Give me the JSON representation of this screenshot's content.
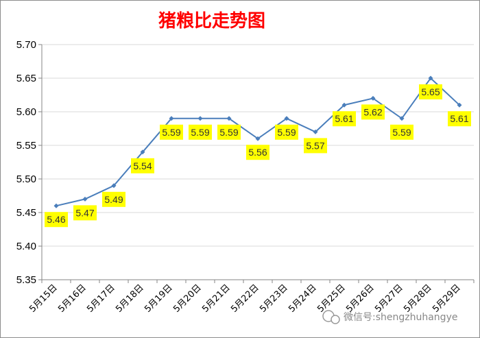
{
  "chart_data": {
    "type": "line",
    "title": "猪粮比走势图",
    "categories": [
      "5月15日",
      "5月16日",
      "5月17日",
      "5月18日",
      "5月19日",
      "5月20日",
      "5月21日",
      "5月22日",
      "5月23日",
      "5月24日",
      "5月25日",
      "5月26日",
      "5月27日",
      "5月28日",
      "5月29日"
    ],
    "values": [
      5.46,
      5.47,
      5.49,
      5.54,
      5.59,
      5.59,
      5.59,
      5.56,
      5.59,
      5.57,
      5.61,
      5.62,
      5.59,
      5.65,
      5.61
    ],
    "data_labels": [
      "5.46",
      "5.47",
      "5.49",
      "5.54",
      "5.59",
      "5.59",
      "5.59",
      "5.56",
      "5.59",
      "5.57",
      "5.61",
      "5.62",
      "5.59",
      "5.65",
      "5.61"
    ],
    "y_ticks": [
      "5.35",
      "5.40",
      "5.45",
      "5.50",
      "5.55",
      "5.60",
      "5.65",
      "5.70"
    ],
    "ylim": [
      5.35,
      5.7
    ],
    "grid": true,
    "legend": "none",
    "xlabel": "",
    "ylabel": "",
    "colors": {
      "line": "#4a7ebb",
      "marker": "#4a7ebb",
      "label_bg": "#ffff00",
      "title": "#ff0000",
      "grid": "#d9d9d9"
    }
  },
  "watermark": {
    "icon": "wechat-icon",
    "text": "微信号:shengzhuhangye"
  }
}
